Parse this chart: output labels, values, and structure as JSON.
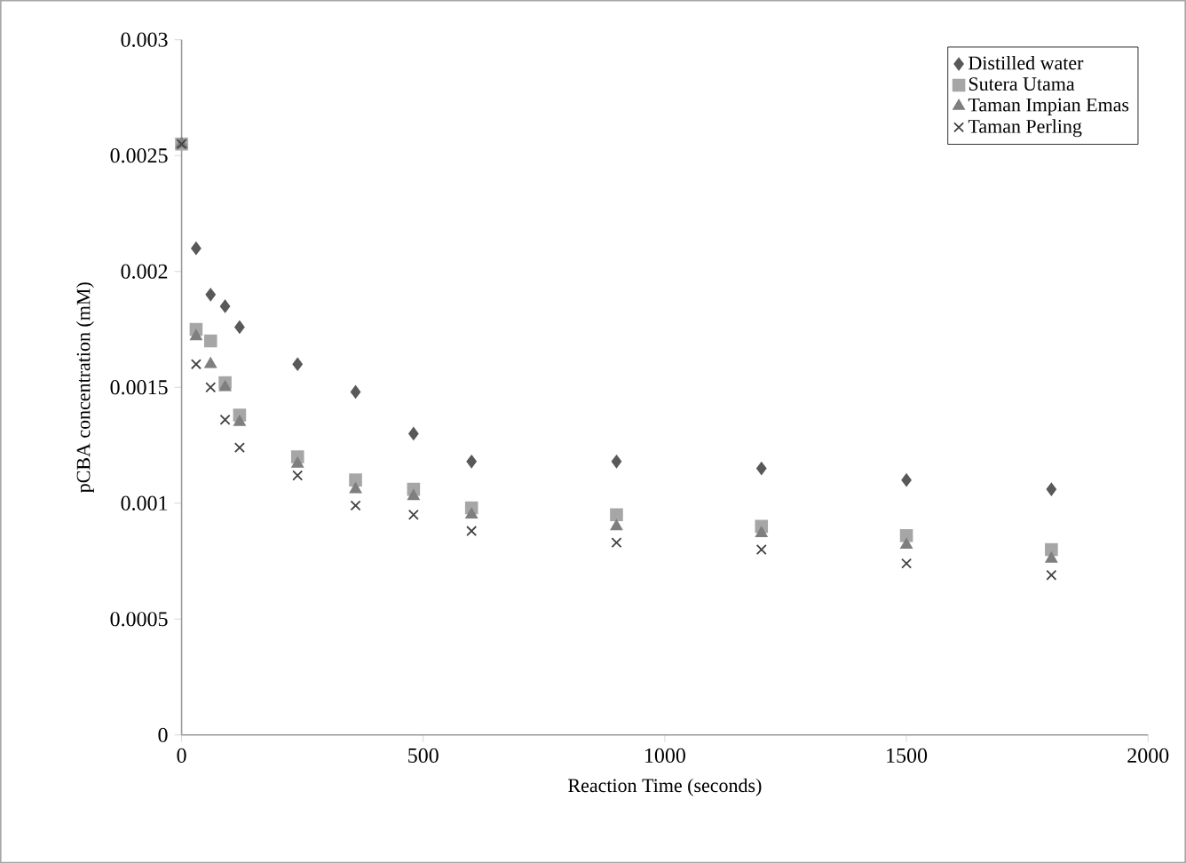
{
  "chart_data": {
    "type": "scatter",
    "xlabel": "Reaction Time  (seconds)",
    "ylabel": "pCBA concentration (mM)",
    "x": [
      0,
      30,
      60,
      90,
      120,
      240,
      360,
      480,
      600,
      900,
      1200,
      1500,
      1800
    ],
    "series": [
      {
        "name": "Distilled water",
        "color": "#595959",
        "marker": "diamond",
        "values": [
          null,
          0.0021,
          0.0019,
          0.00185,
          0.00176,
          0.0016,
          0.00148,
          0.0013,
          0.00118,
          0.00118,
          0.00115,
          0.0011,
          0.00106
        ]
      },
      {
        "name": "Sutera Utama",
        "color": "#a6a6a6",
        "marker": "square",
        "values": [
          0.00255,
          0.00175,
          0.0017,
          0.00152,
          0.00138,
          0.0012,
          0.0011,
          0.00106,
          0.00098,
          0.00095,
          0.0009,
          0.00086,
          0.0008
        ]
      },
      {
        "name": "Taman Impian Emas",
        "color": "#7f7f7f",
        "marker": "triangle",
        "values": [
          0.00255,
          0.00172,
          0.0016,
          0.0015,
          0.00135,
          0.00117,
          0.00106,
          0.00103,
          0.00095,
          0.0009,
          0.00087,
          0.00082,
          0.00076
        ]
      },
      {
        "name": "Taman Perling",
        "color": "#404040",
        "marker": "cross",
        "values": [
          0.00255,
          0.0016,
          0.0015,
          0.00136,
          0.00124,
          0.00112,
          0.00099,
          0.00095,
          0.00088,
          0.00083,
          0.0008,
          0.00074,
          0.00069
        ]
      }
    ],
    "xlim": [
      0,
      2000
    ],
    "xticks": [
      0,
      500,
      1000,
      1500,
      2000
    ],
    "ylim": [
      0,
      0.003
    ],
    "yticks": [
      0,
      0.0005,
      0.001,
      0.0015,
      0.002,
      0.0025,
      0.003
    ],
    "legend": "top right",
    "grid": false
  }
}
